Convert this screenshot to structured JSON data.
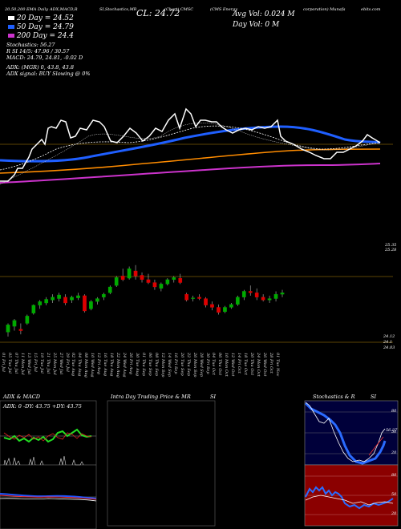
{
  "header": {
    "t1": "20,50,200 EMA Daily",
    "t2": "ADX,MACD,R",
    "t3": "SI,Stochastics,MR",
    "t4": "(Chart) CMSC",
    "t5": "(CMS Energy",
    "t6": "corporation) Munafa",
    "t7": "ebits.com",
    "close": "CL: 24.72",
    "avgvol": "Avg Vol: 0.024   M",
    "dayvol": "Day Vol: 0   M"
  },
  "info": {
    "ema20": "20  Day = 24.52",
    "ema50": "50  Day = 24.79",
    "ema200": "200  Day = 24.4",
    "stoch": "Stochastics: 56.27",
    "rsi": "R                  SI 14/5: 47.96  / 30.57",
    "macd": "MACD: 24.79, 24.81, -0.02  D",
    "adx": "ADX:                         (MGR) 0, 43.8, 43.8",
    "adxsig": "ADX  signal:                                  BUY Slowing @ 0%"
  },
  "price_labels": {
    "top1": "25.35",
    "top2": "25.28",
    "bot1": "24.12",
    "bot2": "24.1",
    "bot3": "24.03"
  },
  "dates": [
    "01 Fri Jul",
    "05 Tue Jul",
    "07 Thu Jul",
    "11 Mon Jul",
    "13 Wed Jul",
    "15 Fri Jul",
    "19 Tue Jul",
    "21 Thu Jul",
    "25 Mon Jul",
    "27 Wed Jul",
    "29 Fri Jul",
    "02 Tue Aug",
    "04 Thu Aug",
    "08 Mon Aug",
    "10 Wed Aug",
    "12 Fri Aug",
    "16 Tue Aug",
    "18 Thu Aug",
    "22 Mon Aug",
    "24 Wed Aug",
    "26 Fri Aug",
    "30 Tue Aug",
    "01 Thu Sep",
    "06 Tue Sep",
    "08 Thu Sep",
    "12 Mon Sep",
    "14 Wed Sep",
    "16 Fri Sep",
    "20 Tue Sep",
    "22 Thu Sep",
    "26 Mon Sep",
    "28 Wed Sep",
    "30 Fri Sep",
    "04 Tue Oct",
    "06 Thu Oct",
    "10 Mon Oct",
    "12 Wed Oct",
    "14 Fri Oct",
    "18 Tue Oct",
    "20 Thu Oct",
    "24 Mon Oct",
    "26 Wed Oct",
    "28 Fri Oct",
    "01 Tue Nov"
  ],
  "panels": {
    "p1_title": "ADX  & MACD",
    "p1_values": "ADX: 0  -DY: 43.75  +DY: 43.75",
    "p2_title": "Intra  Day Trading Price  & MR",
    "p2_title_si": "SI",
    "p3_title": "Stochastics & R",
    "p3_title_si": "SI",
    "stoch_ticks": [
      "80",
      "50",
      "20"
    ],
    "stoch_value": "56.27",
    "rsi_ticks": [
      "80",
      "50",
      "20"
    ]
  },
  "colors": {
    "up": "#00aa00",
    "down": "#dd0000",
    "ema20": "#ffffff",
    "ema50": "#1f5fff",
    "ema200": "#cc33cc",
    "orange": "#ff8c00",
    "gold": "#b8860b",
    "rsi_bg": "#8b0000",
    "stoch_bg": "#00003a"
  },
  "chart_data": {
    "type": "candlestick",
    "dates": [
      "01 Fri Jul",
      "05 Tue Jul",
      "07 Thu Jul",
      "11 Mon Jul",
      "13 Wed Jul",
      "15 Fri Jul",
      "19 Tue Jul",
      "21 Thu Jul",
      "25 Mon Jul",
      "27 Wed Jul",
      "29 Fri Jul",
      "02 Tue Aug",
      "04 Thu Aug",
      "08 Mon Aug",
      "10 Wed Aug",
      "12 Fri Aug",
      "16 Tue Aug",
      "18 Thu Aug",
      "22 Mon Aug",
      "24 Wed Aug",
      "26 Fri Aug",
      "30 Tue Aug",
      "01 Thu Sep",
      "06 Tue Sep",
      "08 Thu Sep",
      "12 Mon Sep",
      "14 Wed Sep",
      "16 Fri Sep",
      "20 Tue Sep",
      "22 Thu Sep",
      "26 Mon Sep",
      "28 Wed Sep",
      "30 Fri Sep",
      "04 Tue Oct",
      "06 Thu Oct",
      "10 Mon Oct",
      "12 Wed Oct",
      "14 Fri Oct",
      "18 Tue Oct",
      "20 Thu Oct",
      "24 Mon Oct",
      "26 Wed Oct",
      "28 Fri Oct",
      "01 Tue Nov"
    ],
    "candles": [
      {
        "o": 24.18,
        "h": 24.3,
        "l": 24.12,
        "c": 24.28
      },
      {
        "o": 24.26,
        "h": 24.36,
        "l": 24.2,
        "c": 24.34
      },
      {
        "o": 24.22,
        "h": 24.3,
        "l": 24.15,
        "c": 24.2
      },
      {
        "o": 24.3,
        "h": 24.42,
        "l": 24.28,
        "c": 24.4
      },
      {
        "o": 24.44,
        "h": 24.56,
        "l": 24.42,
        "c": 24.55
      },
      {
        "o": 24.55,
        "h": 24.62,
        "l": 24.5,
        "c": 24.6
      },
      {
        "o": 24.58,
        "h": 24.66,
        "l": 24.55,
        "c": 24.63
      },
      {
        "o": 24.62,
        "h": 24.7,
        "l": 24.58,
        "c": 24.66
      },
      {
        "o": 24.64,
        "h": 24.72,
        "l": 24.6,
        "c": 24.69
      },
      {
        "o": 24.66,
        "h": 24.7,
        "l": 24.55,
        "c": 24.58
      },
      {
        "o": 24.62,
        "h": 24.68,
        "l": 24.58,
        "c": 24.66
      },
      {
        "o": 24.65,
        "h": 24.72,
        "l": 24.62,
        "c": 24.68
      },
      {
        "o": 24.68,
        "h": 24.7,
        "l": 24.45,
        "c": 24.47
      },
      {
        "o": 24.5,
        "h": 24.62,
        "l": 24.48,
        "c": 24.6
      },
      {
        "o": 24.6,
        "h": 24.66,
        "l": 24.56,
        "c": 24.64
      },
      {
        "o": 24.66,
        "h": 24.72,
        "l": 24.62,
        "c": 24.7
      },
      {
        "o": 24.72,
        "h": 24.82,
        "l": 24.7,
        "c": 24.8
      },
      {
        "o": 24.82,
        "h": 24.95,
        "l": 24.8,
        "c": 24.93
      },
      {
        "o": 24.95,
        "h": 25.05,
        "l": 24.88,
        "c": 24.9
      },
      {
        "o": 24.92,
        "h": 25.08,
        "l": 24.9,
        "c": 25.05
      },
      {
        "o": 25.02,
        "h": 25.1,
        "l": 24.9,
        "c": 24.95
      },
      {
        "o": 24.96,
        "h": 25.0,
        "l": 24.86,
        "c": 24.9
      },
      {
        "o": 24.9,
        "h": 24.98,
        "l": 24.84,
        "c": 24.86
      },
      {
        "o": 24.86,
        "h": 24.9,
        "l": 24.76,
        "c": 24.8
      },
      {
        "o": 24.78,
        "h": 24.86,
        "l": 24.74,
        "c": 24.84
      },
      {
        "o": 24.84,
        "h": 24.92,
        "l": 24.82,
        "c": 24.9
      },
      {
        "o": 24.9,
        "h": 24.95,
        "l": 24.86,
        "c": 24.93
      },
      {
        "o": 24.92,
        "h": 24.98,
        "l": 24.84,
        "c": 24.86
      },
      {
        "o": 24.7,
        "h": 24.72,
        "l": 24.6,
        "c": 24.62
      },
      {
        "o": 24.64,
        "h": 24.68,
        "l": 24.6,
        "c": 24.65
      },
      {
        "o": 24.66,
        "h": 24.7,
        "l": 24.62,
        "c": 24.64
      },
      {
        "o": 24.64,
        "h": 24.66,
        "l": 24.52,
        "c": 24.55
      },
      {
        "o": 24.56,
        "h": 24.6,
        "l": 24.48,
        "c": 24.52
      },
      {
        "o": 24.52,
        "h": 24.56,
        "l": 24.42,
        "c": 24.45
      },
      {
        "o": 24.46,
        "h": 24.54,
        "l": 24.44,
        "c": 24.52
      },
      {
        "o": 24.52,
        "h": 24.58,
        "l": 24.5,
        "c": 24.56
      },
      {
        "o": 24.56,
        "h": 24.68,
        "l": 24.54,
        "c": 24.66
      },
      {
        "o": 24.66,
        "h": 24.76,
        "l": 24.62,
        "c": 24.74
      },
      {
        "o": 24.74,
        "h": 24.82,
        "l": 24.68,
        "c": 24.72
      },
      {
        "o": 24.72,
        "h": 24.78,
        "l": 24.62,
        "c": 24.66
      },
      {
        "o": 24.66,
        "h": 24.7,
        "l": 24.6,
        "c": 24.62
      },
      {
        "o": 24.62,
        "h": 24.68,
        "l": 24.58,
        "c": 24.64
      },
      {
        "o": 24.64,
        "h": 24.74,
        "l": 24.6,
        "c": 24.7
      },
      {
        "o": 24.7,
        "h": 24.76,
        "l": 24.66,
        "c": 24.72
      }
    ],
    "ylim": [
      24.03,
      25.35
    ],
    "legend": "top-left"
  }
}
